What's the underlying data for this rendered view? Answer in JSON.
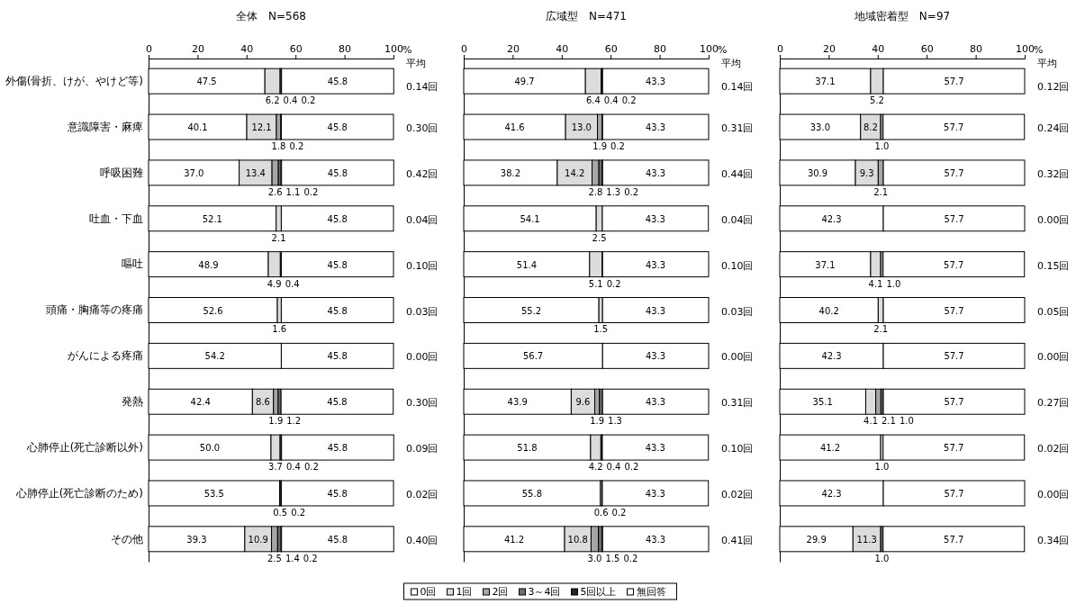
{
  "chart_data": [
    {
      "type": "bar",
      "orientation": "horizontal",
      "stacked": true,
      "title": "全体　N=568",
      "xlabel": "%",
      "xlim": [
        0,
        100
      ],
      "xticks": [
        0,
        20,
        40,
        60,
        80,
        100
      ],
      "legend": "bottom",
      "categories": [
        "外傷(骨折、けが、やけど等)",
        "意識障害・麻痺",
        "呼吸困難",
        "吐血・下血",
        "嘔吐",
        "頭痛・胸痛等の疼痛",
        "がんによる疼痛",
        "発熱",
        "心肺停止(死亡診断以外)",
        "心肺停止(死亡診断のため)",
        "その他"
      ],
      "series": [
        {
          "name": "0回",
          "color": "#ffffff",
          "values": [
            47.5,
            40.1,
            37.0,
            52.1,
            48.9,
            52.6,
            54.2,
            42.4,
            50.0,
            53.5,
            39.3
          ],
          "value_labels": [
            "47.5",
            "40.1",
            "37.0",
            "52.1",
            "48.9",
            "52.6",
            "54.2",
            "42.4",
            "50.0",
            "53.5",
            "39.3"
          ]
        },
        {
          "name": "1回",
          "color": "#dcdcdc",
          "values": [
            6.2,
            12.1,
            13.4,
            2.1,
            4.9,
            1.6,
            null,
            8.6,
            3.7,
            0.5,
            10.9
          ],
          "value_labels": [
            "6.2",
            "12.1",
            "13.4",
            "2.1",
            "4.9",
            "1.6",
            null,
            "8.6",
            "3.7",
            "0.5",
            "10.9"
          ]
        },
        {
          "name": "2回",
          "color": "#a6a6a6",
          "values": [
            0.4,
            1.8,
            2.6,
            null,
            0.4,
            null,
            null,
            1.9,
            0.4,
            0.2,
            2.5
          ],
          "value_labels": [
            "0.4",
            "1.8",
            "2.6",
            null,
            "0.4",
            null,
            null,
            "1.9",
            "0.4",
            "0.2",
            "2.5"
          ]
        },
        {
          "name": "3～4回",
          "color": "#6e6e6e",
          "values": [
            0.2,
            0.2,
            1.1,
            null,
            null,
            null,
            null,
            1.2,
            0.2,
            null,
            1.4
          ],
          "value_labels": [
            "0.2",
            "0.2",
            "1.1",
            null,
            null,
            null,
            null,
            "1.2",
            "0.2",
            null,
            "1.4"
          ]
        },
        {
          "name": "5回以上",
          "color": "#262626",
          "values": [
            null,
            null,
            0.2,
            null,
            null,
            null,
            null,
            null,
            null,
            null,
            0.2
          ],
          "value_labels": [
            null,
            null,
            "0.2",
            null,
            null,
            null,
            null,
            null,
            null,
            null,
            "0.2"
          ]
        },
        {
          "name": "無回答",
          "color": "#ffffff",
          "values": [
            45.8,
            45.8,
            45.8,
            45.8,
            45.8,
            45.8,
            45.8,
            45.8,
            45.8,
            45.8,
            45.8
          ],
          "value_labels": [
            "45.8",
            "45.8",
            "45.8",
            "45.8",
            "45.8",
            "45.8",
            "45.8",
            "45.8",
            "45.8",
            "45.8",
            "45.8"
          ]
        }
      ],
      "annotations": [
        "平均",
        "0.14回",
        "0.30回",
        "0.42回",
        "0.04回",
        "0.10回",
        "0.03回",
        "0.00回",
        "0.30回",
        "0.09回",
        "0.02回",
        "0.40回"
      ]
    },
    {
      "type": "bar",
      "orientation": "horizontal",
      "stacked": true,
      "title": "広域型　N=471",
      "xlabel": "%",
      "xlim": [
        0,
        100
      ],
      "xticks": [
        0,
        20,
        40,
        60,
        80,
        100
      ],
      "tick_labels": "x",
      "categories": [
        null,
        null,
        null,
        null,
        null,
        null,
        null,
        null,
        null,
        null,
        null
      ],
      "series": [
        {
          "color": "#ffffff",
          "values": [
            49.7,
            41.6,
            38.2,
            54.1,
            51.4,
            55.2,
            56.7,
            43.9,
            51.8,
            55.8,
            41.2
          ],
          "value_labels": [
            "49.7",
            "41.6",
            "38.2",
            "54.1",
            "51.4",
            "55.2",
            "56.7",
            "43.9",
            "51.8",
            "55.8",
            "41.2"
          ]
        },
        {
          "color": "#dcdcdc",
          "values": [
            6.4,
            13.0,
            14.2,
            2.5,
            5.1,
            1.5,
            null,
            9.6,
            4.2,
            0.6,
            10.8
          ],
          "value_labels": [
            "6.4",
            "13.0",
            "14.2",
            "2.5",
            "5.1",
            "1.5",
            null,
            "9.6",
            "4.2",
            "0.6",
            "10.8"
          ]
        },
        {
          "color": "#a6a6a6",
          "values": [
            0.4,
            1.9,
            2.8,
            null,
            0.2,
            null,
            null,
            1.9,
            0.4,
            0.2,
            3.0
          ],
          "value_labels": [
            "0.4",
            "1.9",
            "2.8",
            null,
            "0.2",
            null,
            null,
            "1.9",
            "0.4",
            "0.2",
            "3.0"
          ]
        },
        {
          "color": "#6e6e6e",
          "values": [
            0.2,
            0.2,
            1.3,
            null,
            null,
            null,
            null,
            1.3,
            0.2,
            null,
            1.5
          ],
          "value_labels": [
            "0.2",
            "0.2",
            "1.3",
            null,
            null,
            null,
            null,
            "1.3",
            "0.2",
            null,
            "1.5"
          ]
        },
        {
          "color": "#262626",
          "values": [
            null,
            null,
            0.2,
            null,
            null,
            null,
            null,
            null,
            null,
            null,
            0.2
          ],
          "value_labels": [
            null,
            null,
            "0.2",
            null,
            null,
            null,
            null,
            null,
            null,
            null,
            "0.2"
          ]
        },
        {
          "color": "#ffffff",
          "values": [
            43.3,
            43.3,
            43.3,
            43.3,
            43.3,
            43.3,
            43.3,
            43.3,
            43.3,
            43.3,
            43.3
          ],
          "value_labels": [
            "43.3",
            "43.3",
            "43.3",
            "43.3",
            "43.3",
            "43.3",
            "43.3",
            "43.3",
            "43.3",
            "43.3",
            "43.3"
          ]
        }
      ],
      "annotations": [
        "平均",
        "0.14回",
        "0.31回",
        "0.44回",
        "0.04回",
        "0.10回",
        "0.03回",
        "0.00回",
        "0.31回",
        "0.10回",
        "0.02回",
        "0.41回"
      ]
    },
    {
      "type": "bar",
      "orientation": "horizontal",
      "stacked": true,
      "title": "地域密着型　N=97",
      "xlabel": "%",
      "xlim": [
        0,
        100
      ],
      "xticks": [
        0,
        20,
        40,
        60,
        80,
        100
      ],
      "tick_labels": "x",
      "categories": [
        null,
        null,
        null,
        null,
        null,
        null,
        null,
        null,
        null,
        null,
        null
      ],
      "series": [
        {
          "color": "#ffffff",
          "values": [
            37.1,
            33.0,
            30.9,
            42.3,
            37.1,
            40.2,
            42.3,
            35.1,
            41.2,
            42.3,
            29.9
          ],
          "value_labels": [
            "37.1",
            "33.0",
            "30.9",
            "42.3",
            "37.1",
            "40.2",
            "42.3",
            "35.1",
            "41.2",
            "42.3",
            "29.9"
          ]
        },
        {
          "color": "#dcdcdc",
          "values": [
            5.2,
            8.2,
            9.3,
            null,
            4.1,
            2.1,
            null,
            4.1,
            1.0,
            null,
            11.3
          ],
          "value_labels": [
            "5.2",
            "8.2",
            "9.3",
            null,
            "4.1",
            "2.1",
            null,
            "4.1",
            "1.0",
            null,
            "11.3"
          ]
        },
        {
          "color": "#a6a6a6",
          "values": [
            null,
            1.0,
            2.1,
            null,
            1.0,
            null,
            null,
            2.1,
            null,
            null,
            null
          ],
          "value_labels": [
            null,
            "1.0",
            "2.1",
            null,
            "1.0",
            null,
            null,
            "2.1",
            null,
            null,
            null
          ]
        },
        {
          "color": "#6e6e6e",
          "values": [
            null,
            null,
            null,
            null,
            null,
            null,
            null,
            1.0,
            null,
            null,
            1.0
          ],
          "value_labels": [
            null,
            null,
            null,
            null,
            null,
            null,
            null,
            "1.0",
            null,
            null,
            "1.0"
          ]
        },
        {
          "color": "#ffffff",
          "values": [
            57.7,
            57.7,
            57.7,
            57.7,
            57.7,
            57.7,
            57.7,
            57.7,
            57.7,
            57.7,
            57.7
          ],
          "value_labels": [
            "57.7",
            "57.7",
            "57.7",
            "57.7",
            "57.7",
            "57.7",
            "57.7",
            "57.7",
            "57.7",
            "57.7",
            "57.7"
          ]
        }
      ],
      "annotations": [
        "平均",
        "0.12回",
        "0.24回",
        "0.32回",
        "0.00回",
        "0.15回",
        "0.05回",
        "0.00回",
        "0.27回",
        "0.02回",
        "0.00回",
        "0.34回"
      ]
    }
  ]
}
